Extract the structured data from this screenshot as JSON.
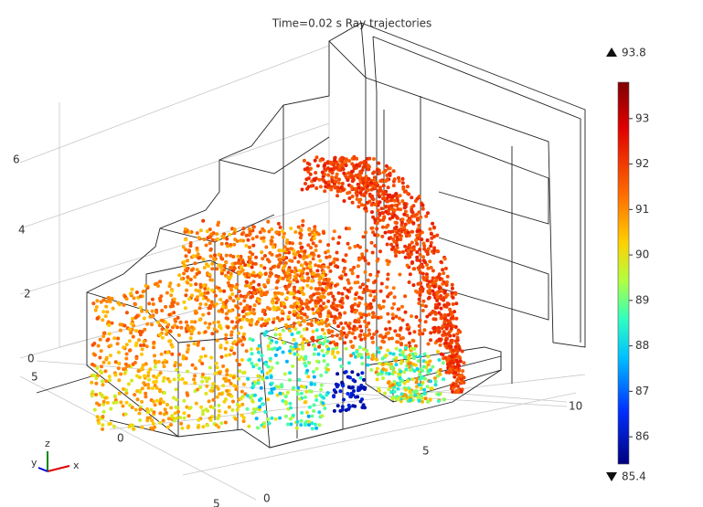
{
  "title": "Time=0.02 s  Ray trajectories",
  "colorbar": {
    "max": 93.8,
    "min": 85.4,
    "ticks": [
      93,
      92,
      91,
      90,
      89,
      88,
      87,
      86
    ]
  },
  "axes": {
    "z_ticks": [
      6,
      4,
      2,
      0
    ],
    "y_ticks": [
      5,
      0,
      5
    ],
    "x_ticks": [
      0,
      5,
      10
    ]
  },
  "triad": {
    "x": "x",
    "y": "y",
    "z": "z"
  }
}
